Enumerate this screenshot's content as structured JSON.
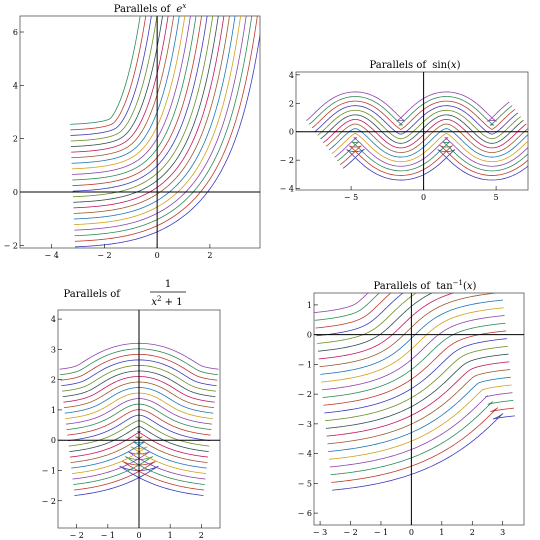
{
  "figure": {
    "palette": [
      "#3b3bbd",
      "#c0392b",
      "#2e8b57",
      "#8e44ad",
      "#d4a017",
      "#1f77b4",
      "#9a5b2e",
      "#c2185b",
      "#2f4f4f",
      "#6b8e23"
    ]
  },
  "chart_data": [
    {
      "type": "line",
      "title": "Parallels of e^x",
      "title_parts": {
        "prefix": "Parallels of",
        "base": "e",
        "sup": "x"
      },
      "function": "exp",
      "offsets": {
        "min": -2.1,
        "max": 2.5,
        "count": 23
      },
      "x_domain": [
        -3.2,
        3.8
      ],
      "xlim": [
        -5.2,
        3.9
      ],
      "ylim": [
        -2.1,
        6.6
      ],
      "x_ticks": [
        -4,
        -2,
        0,
        2
      ],
      "y_ticks": [
        -2,
        0,
        2,
        4,
        6
      ],
      "grid": false
    },
    {
      "type": "line",
      "title": "Parallels of sin(x)",
      "title_parts": {
        "prefix": "Parallels of",
        "base": "sin(",
        "arg": "x",
        "suffix": ")"
      },
      "function": "sin",
      "offsets": {
        "min": -2.4,
        "max": 1.8,
        "count": 14
      },
      "x_domain": [
        -7.0,
        7.0
      ],
      "xlim": [
        -8.8,
        7.2
      ],
      "ylim": [
        -4.1,
        4.2
      ],
      "x_ticks": [
        -5,
        0,
        5
      ],
      "y_ticks": [
        -4,
        -2,
        0,
        2,
        4
      ],
      "grid": false
    },
    {
      "type": "line",
      "title": "Parallels of 1/(x^2+1)",
      "title_parts": {
        "prefix": "Parallels of",
        "numerator": "1",
        "denominator": "x",
        "den_sup": "2",
        "den_suffix": " + 1"
      },
      "function": "lorentz",
      "offsets": {
        "min": -2.0,
        "max": 2.2,
        "count": 24
      },
      "x_domain": [
        -2.3,
        2.3
      ],
      "xlim": [
        -2.6,
        2.6
      ],
      "ylim": [
        -2.9,
        4.3
      ],
      "x_ticks": [
        -2,
        -1,
        0,
        1,
        2
      ],
      "y_ticks": [
        -2,
        -1,
        0,
        1,
        2,
        3,
        4
      ],
      "grid": false
    },
    {
      "type": "line",
      "title": "Parallels of tan^-1(x)",
      "title_parts": {
        "prefix": "Parallels of",
        "base": "tan",
        "sup": "−1",
        "arg_open": "(",
        "arg": "x",
        "arg_close": ")"
      },
      "function": "arctan",
      "offsets": {
        "min": -4.0,
        "max": 2.0,
        "count": 24
      },
      "x_domain": [
        -3.0,
        3.0
      ],
      "xlim": [
        -3.2,
        3.7
      ],
      "ylim": [
        -6.4,
        1.4
      ],
      "x_ticks": [
        -3,
        -2,
        -1,
        0,
        1,
        2,
        3
      ],
      "y_ticks": [
        -6,
        -5,
        -4,
        -3,
        -2,
        -1,
        0,
        1
      ],
      "grid": false
    }
  ]
}
